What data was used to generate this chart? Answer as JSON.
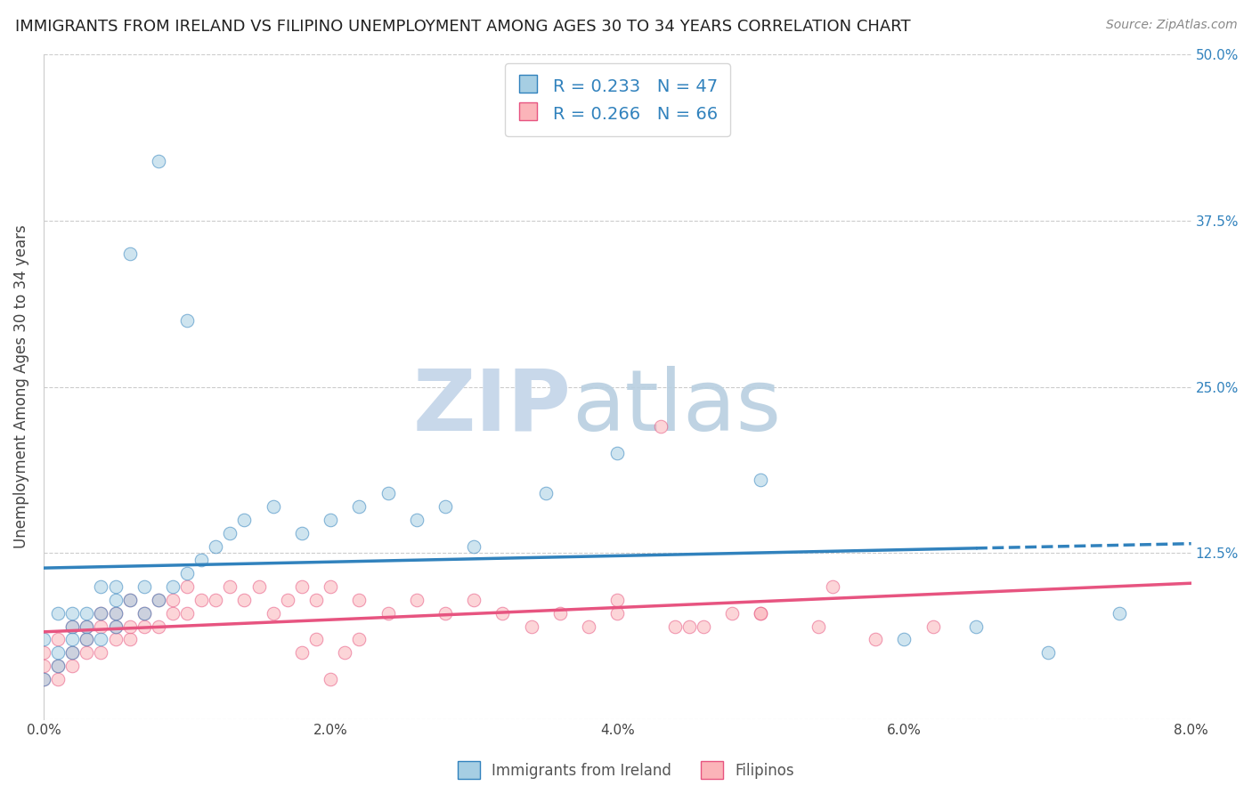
{
  "title": "IMMIGRANTS FROM IRELAND VS FILIPINO UNEMPLOYMENT AMONG AGES 30 TO 34 YEARS CORRELATION CHART",
  "source": "Source: ZipAtlas.com",
  "ylabel": "Unemployment Among Ages 30 to 34 years",
  "legend_label1": "Immigrants from Ireland",
  "legend_label2": "Filipinos",
  "R1": 0.233,
  "N1": 47,
  "R2": 0.266,
  "N2": 66,
  "xlim": [
    0.0,
    0.08
  ],
  "ylim": [
    0.0,
    0.5
  ],
  "xticks": [
    0.0,
    0.02,
    0.04,
    0.06,
    0.08
  ],
  "yticks": [
    0.0,
    0.125,
    0.25,
    0.375,
    0.5
  ],
  "xticklabels": [
    "0.0%",
    "2.0%",
    "4.0%",
    "6.0%",
    "8.0%"
  ],
  "yticklabels_right": [
    "",
    "12.5%",
    "25.0%",
    "37.5%",
    "50.0%"
  ],
  "color_blue_fill": "#a6cee3",
  "color_blue_edge": "#3182bd",
  "color_pink_fill": "#fbb4b9",
  "color_pink_edge": "#e75480",
  "color_blue_line": "#3182bd",
  "color_pink_line": "#e75480",
  "watermark_zip_color": "#c8d8ea",
  "watermark_atlas_color": "#b8cfe0",
  "blue_x": [
    0.0,
    0.0,
    0.001,
    0.001,
    0.001,
    0.002,
    0.002,
    0.002,
    0.002,
    0.003,
    0.003,
    0.003,
    0.004,
    0.004,
    0.004,
    0.005,
    0.005,
    0.005,
    0.005,
    0.006,
    0.006,
    0.007,
    0.007,
    0.008,
    0.008,
    0.009,
    0.01,
    0.01,
    0.011,
    0.012,
    0.013,
    0.014,
    0.016,
    0.018,
    0.02,
    0.022,
    0.024,
    0.026,
    0.028,
    0.03,
    0.035,
    0.04,
    0.05,
    0.06,
    0.065,
    0.07,
    0.075
  ],
  "blue_y": [
    0.03,
    0.06,
    0.04,
    0.05,
    0.08,
    0.05,
    0.07,
    0.08,
    0.06,
    0.07,
    0.06,
    0.08,
    0.06,
    0.08,
    0.1,
    0.07,
    0.09,
    0.08,
    0.1,
    0.09,
    0.35,
    0.08,
    0.1,
    0.09,
    0.42,
    0.1,
    0.3,
    0.11,
    0.12,
    0.13,
    0.14,
    0.15,
    0.16,
    0.14,
    0.15,
    0.16,
    0.17,
    0.15,
    0.16,
    0.13,
    0.17,
    0.2,
    0.18,
    0.06,
    0.07,
    0.05,
    0.08
  ],
  "pink_x": [
    0.0,
    0.0,
    0.0,
    0.001,
    0.001,
    0.001,
    0.002,
    0.002,
    0.002,
    0.003,
    0.003,
    0.003,
    0.004,
    0.004,
    0.004,
    0.005,
    0.005,
    0.005,
    0.006,
    0.006,
    0.006,
    0.007,
    0.007,
    0.008,
    0.008,
    0.009,
    0.009,
    0.01,
    0.01,
    0.011,
    0.012,
    0.013,
    0.014,
    0.015,
    0.016,
    0.017,
    0.018,
    0.019,
    0.02,
    0.022,
    0.024,
    0.026,
    0.028,
    0.03,
    0.032,
    0.034,
    0.036,
    0.038,
    0.04,
    0.043,
    0.046,
    0.05,
    0.054,
    0.058,
    0.062,
    0.02,
    0.022,
    0.04,
    0.045,
    0.05,
    0.018,
    0.019,
    0.021,
    0.044,
    0.048,
    0.055
  ],
  "pink_y": [
    0.03,
    0.04,
    0.05,
    0.03,
    0.04,
    0.06,
    0.04,
    0.05,
    0.07,
    0.05,
    0.06,
    0.07,
    0.05,
    0.07,
    0.08,
    0.06,
    0.07,
    0.08,
    0.06,
    0.07,
    0.09,
    0.07,
    0.08,
    0.07,
    0.09,
    0.08,
    0.09,
    0.08,
    0.1,
    0.09,
    0.09,
    0.1,
    0.09,
    0.1,
    0.08,
    0.09,
    0.1,
    0.09,
    0.03,
    0.09,
    0.08,
    0.09,
    0.08,
    0.09,
    0.08,
    0.07,
    0.08,
    0.07,
    0.08,
    0.22,
    0.07,
    0.08,
    0.07,
    0.06,
    0.07,
    0.1,
    0.06,
    0.09,
    0.07,
    0.08,
    0.05,
    0.06,
    0.05,
    0.07,
    0.08,
    0.1
  ]
}
